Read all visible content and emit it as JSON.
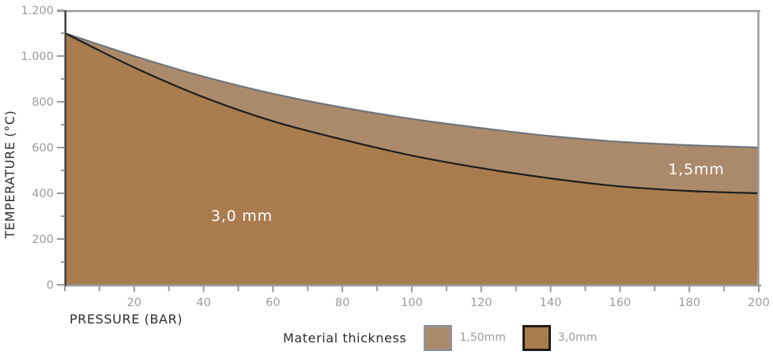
{
  "chart_data": {
    "type": "area",
    "title": "",
    "xlabel": "PRESSURE (BAR)",
    "ylabel": "TEMPERATURE (°C)",
    "xlim": [
      0,
      200
    ],
    "ylim": [
      0,
      1200
    ],
    "grid": false,
    "x": [
      0,
      20,
      40,
      60,
      80,
      100,
      120,
      140,
      160,
      180,
      200
    ],
    "series": [
      {
        "name": "1,5mm",
        "legend_label": "1,50mm",
        "values": [
          1100,
          1000,
          910,
          835,
          775,
          725,
          685,
          650,
          625,
          610,
          600
        ],
        "fill": "#ab8a6b",
        "stroke": "#6e757b",
        "swatch_border": "#8f9194"
      },
      {
        "name": "3,0 mm",
        "legend_label": "3,0mm",
        "values": [
          1100,
          950,
          820,
          715,
          635,
          565,
          510,
          465,
          430,
          410,
          400
        ],
        "fill": "#a97c4e",
        "stroke": "#1c1c1c",
        "swatch_border": "#1c1c1c"
      }
    ],
    "x_tick_labels": [
      {
        "value": 20,
        "label": "20"
      },
      {
        "value": 40,
        "label": "40"
      },
      {
        "value": 60,
        "label": "60"
      },
      {
        "value": 80,
        "label": "80"
      },
      {
        "value": 100,
        "label": "100"
      },
      {
        "value": 120,
        "label": "120"
      },
      {
        "value": 140,
        "label": "140"
      },
      {
        "value": 160,
        "label": "160"
      },
      {
        "value": 180,
        "label": "180"
      },
      {
        "value": 200,
        "label": "200"
      }
    ],
    "y_tick_labels": [
      {
        "value": 0,
        "label": "0"
      },
      {
        "value": 200,
        "label": "200"
      },
      {
        "value": 400,
        "label": "400"
      },
      {
        "value": 600,
        "label": "600"
      },
      {
        "value": 800,
        "label": "800"
      },
      {
        "value": 1000,
        "label": "1.000"
      },
      {
        "value": 1200,
        "label": "1.200"
      }
    ],
    "x_minor_step": 10,
    "y_minor_step": 100,
    "annotations": [
      {
        "text": "1,5mm",
        "x": 182,
        "y": 505
      },
      {
        "text": "3,0 mm",
        "x": 51,
        "y": 300
      }
    ],
    "legend": {
      "title": "Material thickness",
      "position": "bottom"
    }
  },
  "style": {
    "background": "#ffffff",
    "axis_color": "#9b9b9b",
    "yaxis_line_color": "#3f3f3f",
    "tick_label_color": "#9b9b9b",
    "axis_title_color": "#2d2d2d",
    "annotation_text_color": "#ffffff"
  }
}
